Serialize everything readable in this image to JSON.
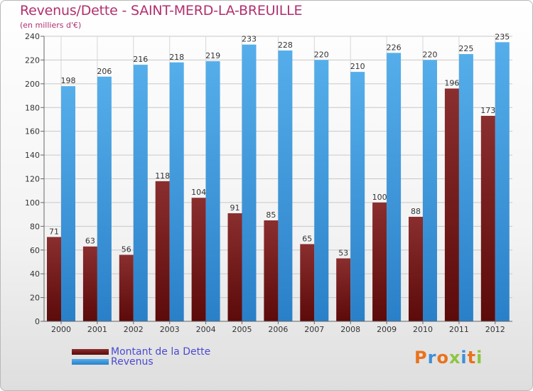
{
  "chart_data": {
    "type": "bar",
    "title": "Revenus/Dette - SAINT-MERD-LA-BREUILLE",
    "subtitle": "(en milliers d'€)",
    "categories": [
      "2000",
      "2001",
      "2002",
      "2003",
      "2004",
      "2005",
      "2006",
      "2007",
      "2008",
      "2009",
      "2010",
      "2011",
      "2012"
    ],
    "series": [
      {
        "name": "Montant de la Dette",
        "color": "#7a1818",
        "values": [
          71,
          63,
          56,
          118,
          104,
          91,
          85,
          65,
          53,
          100,
          88,
          196,
          173
        ]
      },
      {
        "name": "Revenus",
        "color": "#3d9de0",
        "values": [
          198,
          206,
          216,
          218,
          219,
          233,
          228,
          220,
          210,
          226,
          220,
          225,
          235
        ]
      }
    ],
    "ylim": [
      0,
      240
    ],
    "yticks": [
      0,
      20,
      40,
      60,
      80,
      100,
      120,
      140,
      160,
      180,
      200,
      220,
      240
    ],
    "grid": true,
    "legend_position": "bottom-left"
  },
  "logo": {
    "text": "Proxiti",
    "letters": [
      {
        "char": "P",
        "color": "#e8731d"
      },
      {
        "char": "r",
        "color": "#3d8fd8"
      },
      {
        "char": "o",
        "color": "#e8731d"
      },
      {
        "char": "x",
        "color": "#8dc63f"
      },
      {
        "char": "i",
        "color": "#3d8fd8"
      },
      {
        "char": "t",
        "color": "#e8731d"
      },
      {
        "char": "i",
        "color": "#8dc63f"
      }
    ]
  }
}
